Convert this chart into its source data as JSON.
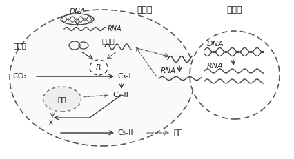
{
  "title_chloroplast": "叶绿体",
  "title_nucleus": "细胞核",
  "label_DNA": "DNA",
  "label_RNA": "RNA",
  "label_big_subunit": "大亚基",
  "label_small_subunit": "小亚基",
  "label_R": "R",
  "label_CO2": "CO₂",
  "label_C3I": "C₃-I",
  "label_C3II": "C₃-II",
  "label_starch": "淀粉",
  "label_X": "X",
  "label_C5II": "C₅-II",
  "label_protein": "蛋白",
  "label_RNA2": "RNA",
  "text_color": "#222222",
  "arrow_color": "#333333",
  "dashed_color": "#555555"
}
